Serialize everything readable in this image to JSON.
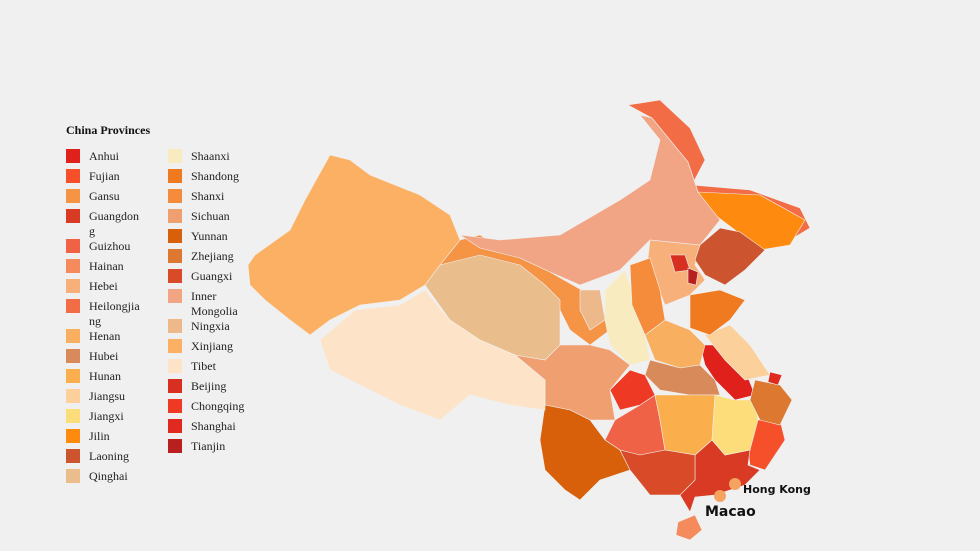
{
  "legend": {
    "title": "China Provinces",
    "columns": [
      [
        {
          "name": "Anhui",
          "color": "#e0201b"
        },
        {
          "name": "Fujian",
          "color": "#f5502a"
        },
        {
          "name": "Gansu",
          "color": "#f59445"
        },
        {
          "name": "Guangdong",
          "color": "#d93a24"
        },
        {
          "name": "Guizhou",
          "color": "#ef6245"
        },
        {
          "name": "Hainan",
          "color": "#f58a5c"
        },
        {
          "name": "Hebei",
          "color": "#f8b07a"
        },
        {
          "name": "Heilongjiang",
          "color": "#f26c45"
        },
        {
          "name": "Henan",
          "color": "#f8b060"
        },
        {
          "name": "Hubei",
          "color": "#d98a5a"
        },
        {
          "name": "Hunan",
          "color": "#fbae4c"
        },
        {
          "name": "Jiangsu",
          "color": "#fcd09a"
        },
        {
          "name": "Jiangxi",
          "color": "#fddc7a"
        },
        {
          "name": "Jilin",
          "color": "#ff8a10"
        },
        {
          "name": "Laoning",
          "color": "#cc5530"
        },
        {
          "name": "Qinghai",
          "color": "#e9bd8c"
        }
      ],
      [
        {
          "name": "Shaanxi",
          "color": "#f8ebc0"
        },
        {
          "name": "Shandong",
          "color": "#f07a20"
        },
        {
          "name": "Shanxi",
          "color": "#f58c3c"
        },
        {
          "name": "Sichuan",
          "color": "#f0a070"
        },
        {
          "name": "Yunnan",
          "color": "#d8600a"
        },
        {
          "name": "Zhejiang",
          "color": "#dd7830"
        },
        {
          "name": "Guangxi",
          "color": "#d84a28"
        },
        {
          "name": "Inner Mongolia",
          "color": "#f2a585"
        },
        {
          "name": "Ningxia",
          "color": "#edb88a"
        },
        {
          "name": "Xinjiang",
          "color": "#fbb064"
        },
        {
          "name": "Tibet",
          "color": "#fde4c8"
        },
        {
          "name": "Beijing",
          "color": "#d83020"
        },
        {
          "name": "Chongqing",
          "color": "#ee3a25"
        },
        {
          "name": "Shanghai",
          "color": "#e02a20"
        },
        {
          "name": "Tianjin",
          "color": "#b82020"
        }
      ]
    ]
  },
  "labels": {
    "hong_kong": {
      "text": "Hong Kong",
      "color": "#f4a460"
    },
    "macao": {
      "text": "Macao",
      "color": "#f4a460"
    }
  }
}
